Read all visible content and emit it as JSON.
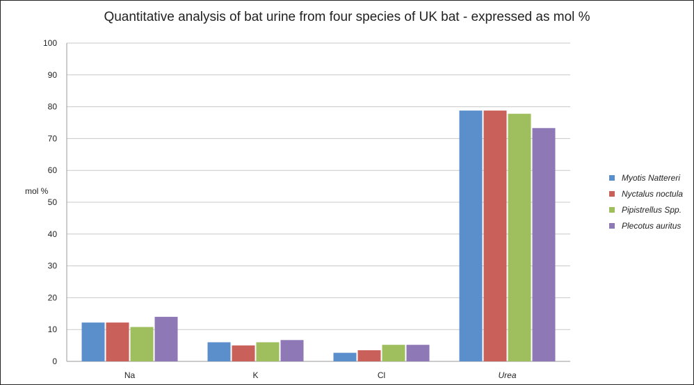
{
  "chart_data": {
    "type": "bar",
    "title": "Quantitative analysis of bat urine from four species of UK bat - expressed as mol %",
    "ylabel": "mol %",
    "xlabel": "",
    "ylim": [
      0,
      100
    ],
    "yticks": [
      0,
      10,
      20,
      30,
      40,
      50,
      60,
      70,
      80,
      90,
      100
    ],
    "grid": true,
    "legend_position": "right",
    "categories": [
      "Na",
      "K",
      "Cl",
      "Urea"
    ],
    "series": [
      {
        "name": "Myotis Nattereri",
        "color": "#5b8fcb",
        "values": [
          12.2,
          6.0,
          2.7,
          78.8
        ]
      },
      {
        "name": "Nyctalus noctula",
        "color": "#c9605a",
        "values": [
          12.2,
          5.0,
          3.5,
          78.8
        ]
      },
      {
        "name": "Pipistrellus Spp.",
        "color": "#9fbf5f",
        "values": [
          10.8,
          6.0,
          5.2,
          77.8
        ]
      },
      {
        "name": "Plecotus auritus",
        "color": "#8e78b6",
        "values": [
          14.0,
          6.7,
          5.2,
          73.3
        ]
      }
    ]
  }
}
